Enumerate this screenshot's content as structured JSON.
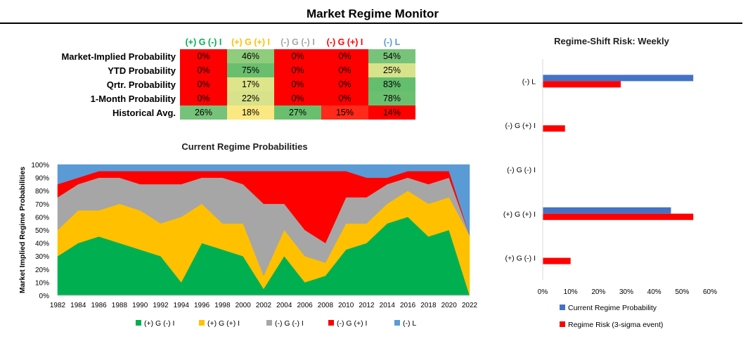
{
  "header": {
    "title": "Market Regime Monitor"
  },
  "colors": {
    "green": "#00b050",
    "yellow": "#ffc000",
    "gray": "#a6a6a6",
    "red": "#ff0000",
    "blue": "#5b9bd5",
    "bar_blue": "#4472c4",
    "bar_red": "#ff0000"
  },
  "table": {
    "columns": [
      {
        "label": "(+) G (-) I",
        "color": "#00b050"
      },
      {
        "label": "(+) G (+) I",
        "color": "#ffc000"
      },
      {
        "label": "(-) G (-) I",
        "color": "#a6a6a6"
      },
      {
        "label": "(-) G (+) I",
        "color": "#ff0000"
      },
      {
        "label": "(-) L",
        "color": "#5b9bd5"
      }
    ],
    "rows": [
      {
        "label": "Market-Implied Probability",
        "cells": [
          {
            "v": "0%",
            "bg": "#ff0000"
          },
          {
            "v": "46%",
            "bg": "#8fcc7c"
          },
          {
            "v": "0%",
            "bg": "#ff0000"
          },
          {
            "v": "0%",
            "bg": "#ff0000"
          },
          {
            "v": "54%",
            "bg": "#78c37a"
          }
        ]
      },
      {
        "label": "YTD Probability",
        "cells": [
          {
            "v": "0%",
            "bg": "#ff0000"
          },
          {
            "v": "75%",
            "bg": "#6abf6f"
          },
          {
            "v": "0%",
            "bg": "#ff0000"
          },
          {
            "v": "0%",
            "bg": "#ff0000"
          },
          {
            "v": "25%",
            "bg": "#d6e38a"
          }
        ]
      },
      {
        "label": "Qrtr. Probability",
        "cells": [
          {
            "v": "0%",
            "bg": "#ff0000"
          },
          {
            "v": "17%",
            "bg": "#dde48a"
          },
          {
            "v": "0%",
            "bg": "#ff0000"
          },
          {
            "v": "0%",
            "bg": "#ff0000"
          },
          {
            "v": "83%",
            "bg": "#63be6e"
          }
        ]
      },
      {
        "label": "1-Month Probability",
        "cells": [
          {
            "v": "0%",
            "bg": "#ff0000"
          },
          {
            "v": "22%",
            "bg": "#d8e28a"
          },
          {
            "v": "0%",
            "bg": "#ff0000"
          },
          {
            "v": "0%",
            "bg": "#ff0000"
          },
          {
            "v": "78%",
            "bg": "#6bc070"
          }
        ]
      },
      {
        "label": "Historical Avg.",
        "cells": [
          {
            "v": "26%",
            "bg": "#76c27a"
          },
          {
            "v": "18%",
            "bg": "#fbe881"
          },
          {
            "v": "27%",
            "bg": "#6abf6f"
          },
          {
            "v": "15%",
            "bg": "#ff2a1a"
          },
          {
            "v": "14%",
            "bg": "#ff0000"
          }
        ]
      }
    ]
  },
  "chart_data": [
    {
      "type": "area",
      "title": "Current Regime Probabilities",
      "xlabel": "",
      "ylabel": "Market Implied Regime Probabilities",
      "ylim": [
        0,
        100
      ],
      "yticks": [
        "0%",
        "10%",
        "20%",
        "30%",
        "40%",
        "50%",
        "60%",
        "70%",
        "80%",
        "90%",
        "100%"
      ],
      "x": [
        "1982",
        "1984",
        "1986",
        "1988",
        "1990",
        "1992",
        "1994",
        "1996",
        "1998",
        "2000",
        "2002",
        "2004",
        "2006",
        "2008",
        "2010",
        "2012",
        "2014",
        "2016",
        "2018",
        "2020",
        "2022"
      ],
      "stacked": true,
      "series": [
        {
          "name": "(+) G (-) I",
          "color": "#00b050",
          "values": [
            30,
            40,
            45,
            40,
            35,
            30,
            10,
            40,
            35,
            30,
            5,
            30,
            10,
            15,
            35,
            40,
            55,
            60,
            45,
            50,
            0
          ]
        },
        {
          "name": "(+) G (+) I",
          "color": "#ffc000",
          "values": [
            20,
            25,
            20,
            30,
            30,
            25,
            50,
            30,
            20,
            25,
            10,
            20,
            20,
            10,
            20,
            15,
            15,
            20,
            25,
            25,
            46
          ]
        },
        {
          "name": "(-) G (-) I",
          "color": "#a6a6a6",
          "values": [
            25,
            20,
            25,
            20,
            20,
            30,
            25,
            20,
            35,
            30,
            55,
            20,
            20,
            15,
            20,
            20,
            15,
            10,
            15,
            15,
            0
          ]
        },
        {
          "name": "(-) G (+) I",
          "color": "#ff0000",
          "values": [
            10,
            5,
            5,
            5,
            10,
            10,
            10,
            5,
            5,
            10,
            25,
            25,
            45,
            55,
            20,
            15,
            5,
            5,
            10,
            5,
            0
          ]
        },
        {
          "name": "(-) L",
          "color": "#5b9bd5",
          "values": [
            15,
            10,
            5,
            5,
            5,
            5,
            5,
            5,
            5,
            5,
            5,
            5,
            5,
            5,
            5,
            10,
            10,
            5,
            5,
            5,
            54
          ]
        }
      ],
      "legend": "bottom"
    },
    {
      "type": "bar",
      "orientation": "horizontal",
      "title": "Regime-Shift Risk: Weekly",
      "categories": [
        "(-) L",
        "(-) G (+) I",
        "(-) G (-) I",
        "(+) G (+) I",
        "(+) G (-) I"
      ],
      "series": [
        {
          "name": "Current Regime Probability",
          "color": "#4472c4",
          "values": [
            54,
            0,
            0,
            46,
            0
          ]
        },
        {
          "name": "Regime Risk (3-sigma event)",
          "color": "#ff0000",
          "values": [
            28,
            8,
            0,
            54,
            10
          ]
        }
      ],
      "xlim": [
        0,
        60
      ],
      "xticks": [
        "0%",
        "10%",
        "20%",
        "30%",
        "40%",
        "50%",
        "60%"
      ],
      "legend": "bottom"
    }
  ]
}
